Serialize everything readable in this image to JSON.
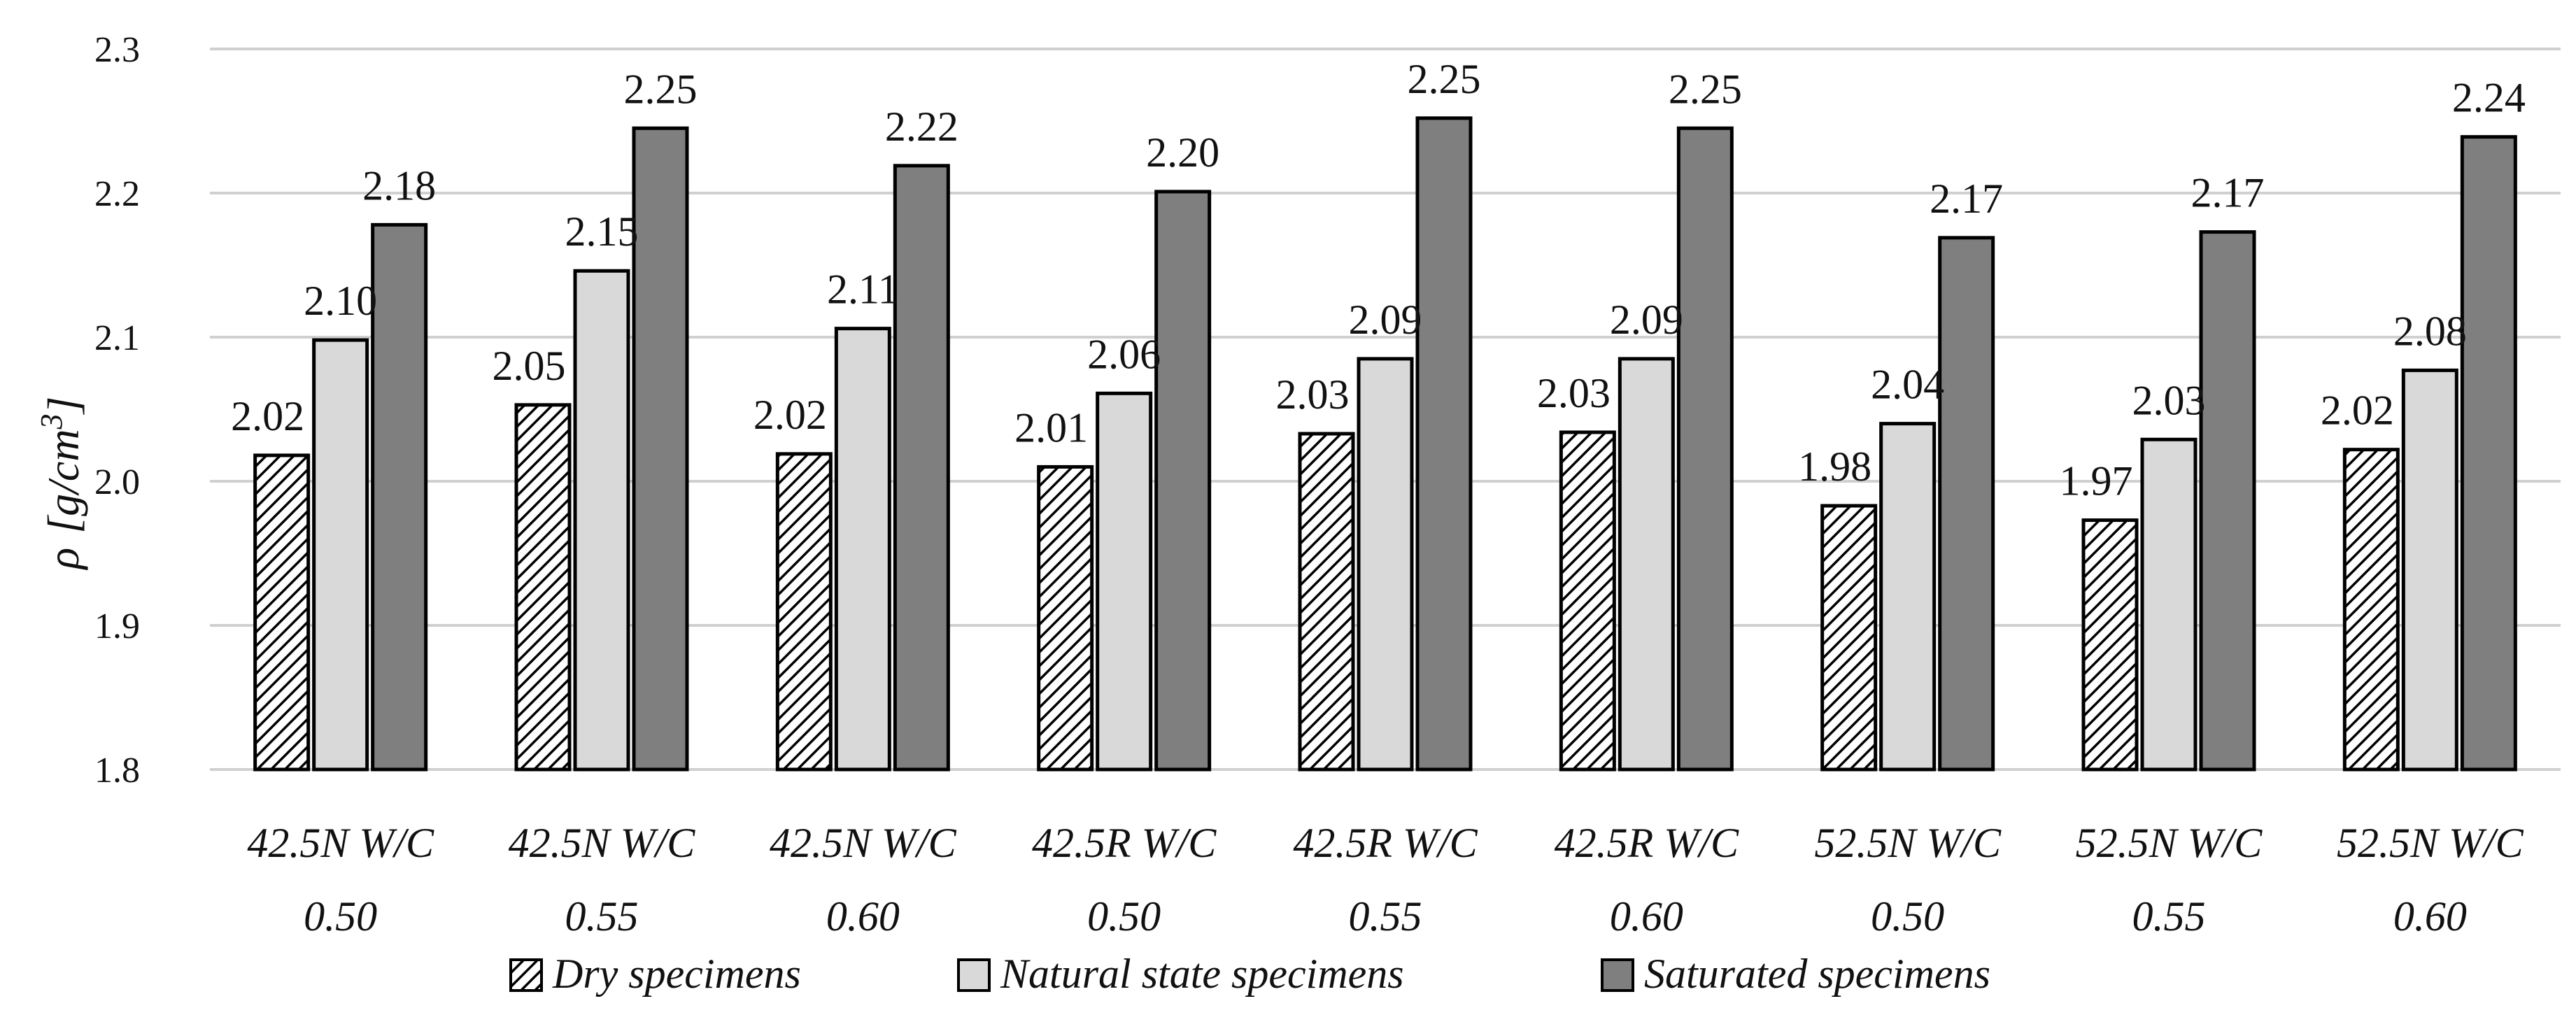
{
  "chart_data": {
    "type": "bar",
    "ylabel": "ρ [g/cm³]",
    "ylabel_parts": {
      "symbol": "ρ",
      "unit": "[g/cm",
      "exponent": "3",
      "close": "]"
    },
    "ylim": [
      1.8,
      2.3
    ],
    "yticks": [
      "1.8",
      "1.9",
      "2.0",
      "2.1",
      "2.2",
      "2.3"
    ],
    "grid": true,
    "legend_position": "bottom",
    "categories": [
      {
        "line1": "42.5N W/C",
        "line2": "0.50"
      },
      {
        "line1": "42.5N W/C",
        "line2": "0.55"
      },
      {
        "line1": "42.5N W/C",
        "line2": "0.60"
      },
      {
        "line1": "42.5R W/C",
        "line2": "0.50"
      },
      {
        "line1": "42.5R W/C",
        "line2": "0.55"
      },
      {
        "line1": "42.5R W/C",
        "line2": "0.60"
      },
      {
        "line1": "52.5N W/C",
        "line2": "0.50"
      },
      {
        "line1": "52.5N W/C",
        "line2": "0.55"
      },
      {
        "line1": "52.5N W/C",
        "line2": "0.60"
      }
    ],
    "series": [
      {
        "name": "Dry specimens",
        "pattern": "hatch",
        "color": "#ffffff",
        "values": [
          2.018,
          2.053,
          2.019,
          2.01,
          2.033,
          2.034,
          1.983,
          1.973,
          2.022
        ],
        "labels": [
          "2.02",
          "2.05",
          "2.02",
          "2.01",
          "2.03",
          "2.03",
          "1.98",
          "1.97",
          "2.02"
        ]
      },
      {
        "name": "Natural state specimens",
        "color": "#d9d9d9",
        "values": [
          2.098,
          2.146,
          2.106,
          2.061,
          2.085,
          2.085,
          2.04,
          2.029,
          2.077
        ],
        "labels": [
          "2.10",
          "2.15",
          "2.11",
          "2.06",
          "2.09",
          "2.09",
          "2.04",
          "2.03",
          "2.08"
        ]
      },
      {
        "name": "Saturated specimens",
        "color": "#7f7f7f",
        "values": [
          2.178,
          2.245,
          2.219,
          2.201,
          2.252,
          2.245,
          2.169,
          2.173,
          2.239
        ],
        "labels": [
          "2.18",
          "2.25",
          "2.22",
          "2.20",
          "2.25",
          "2.25",
          "2.17",
          "2.17",
          "2.24"
        ]
      }
    ]
  }
}
